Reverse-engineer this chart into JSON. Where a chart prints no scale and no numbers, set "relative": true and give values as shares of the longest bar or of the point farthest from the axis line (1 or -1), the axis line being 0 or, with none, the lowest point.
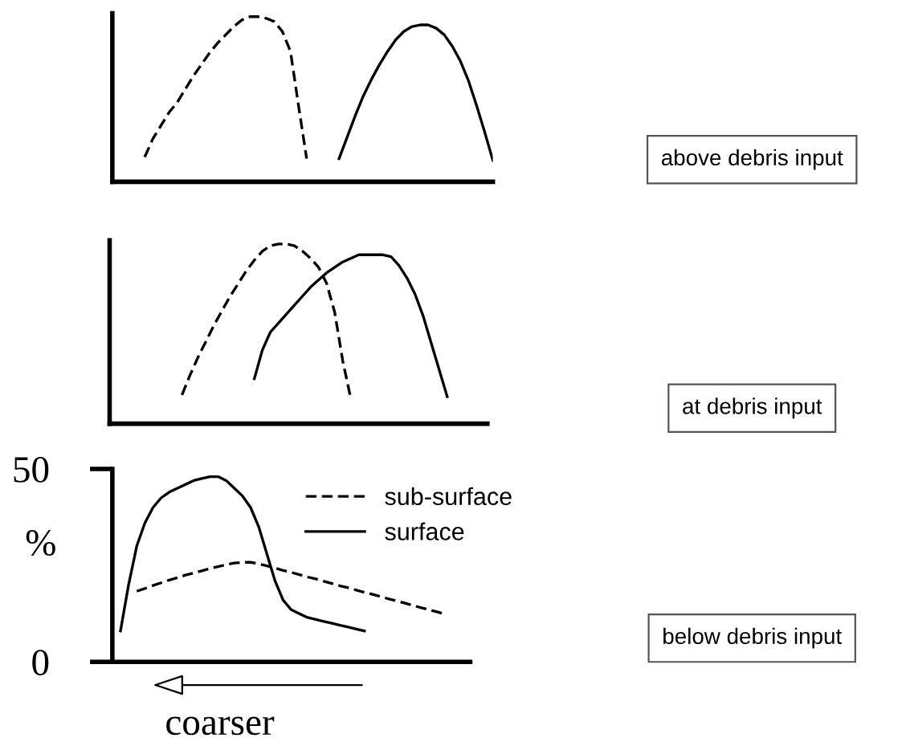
{
  "chart_data": [
    {
      "type": "line",
      "relative": true,
      "tick_labels": false,
      "categories": [
        null,
        null,
        null,
        null,
        null,
        null,
        null,
        null,
        null,
        null,
        null,
        null,
        null,
        null,
        null,
        null,
        null,
        null,
        null,
        null,
        null,
        null,
        null,
        null,
        null,
        null,
        null,
        null,
        null,
        null,
        null,
        null,
        null,
        null,
        null,
        null,
        null,
        null,
        null,
        null,
        null,
        null,
        null,
        null,
        null,
        null,
        null,
        null
      ],
      "series": [
        {
          "color": "#000000",
          "line_style": "dashed",
          "values": [
            null,
            null,
            null,
            null,
            0.15,
            0.26,
            0.34,
            0.42,
            0.48,
            0.56,
            0.64,
            0.71,
            0.78,
            0.84,
            0.89,
            0.94,
            0.98,
            1.0,
            1.0,
            0.99,
            0.97,
            0.91,
            0.79,
            0.46,
            0.14,
            null,
            null,
            null,
            null,
            null,
            null,
            null,
            null,
            null,
            null,
            null,
            null,
            null,
            null,
            null,
            null,
            null,
            null,
            null,
            null,
            null,
            null,
            null
          ]
        },
        {
          "color": "#000000",
          "line_style": "solid",
          "values": [
            null,
            null,
            null,
            null,
            null,
            null,
            null,
            null,
            null,
            null,
            null,
            null,
            null,
            null,
            null,
            null,
            null,
            null,
            null,
            null,
            null,
            null,
            null,
            null,
            null,
            null,
            null,
            null,
            0.14,
            0.27,
            0.4,
            0.52,
            0.62,
            0.71,
            0.79,
            0.86,
            0.91,
            0.94,
            0.95,
            0.95,
            0.93,
            0.89,
            0.82,
            0.73,
            0.61,
            0.46,
            0.3,
            0.13
          ]
        }
      ],
      "annotations": [
        "above debris input"
      ]
    },
    {
      "type": "line",
      "relative": true,
      "tick_labels": false,
      "categories": [
        null,
        null,
        null,
        null,
        null,
        null,
        null,
        null,
        null,
        null,
        null,
        null,
        null,
        null,
        null,
        null,
        null,
        null,
        null,
        null,
        null,
        null,
        null,
        null,
        null,
        null,
        null,
        null,
        null,
        null,
        null,
        null,
        null,
        null,
        null,
        null,
        null,
        null,
        null,
        null,
        null,
        null,
        null,
        null,
        null,
        null,
        null,
        null
      ],
      "series": [
        {
          "color": "#000000",
          "line_style": "dashed",
          "values": [
            null,
            null,
            null,
            null,
            null,
            null,
            null,
            null,
            null,
            0.16,
            0.27,
            0.37,
            0.46,
            0.55,
            0.63,
            0.71,
            0.78,
            0.85,
            0.91,
            0.96,
            0.99,
            1.0,
            1.0,
            0.99,
            0.96,
            0.92,
            0.87,
            0.78,
            0.62,
            0.35,
            0.14,
            null,
            null,
            null,
            null,
            null,
            null,
            null,
            null,
            null,
            null,
            null,
            null,
            null,
            null,
            null,
            null,
            null
          ]
        },
        {
          "color": "#000000",
          "line_style": "solid",
          "values": [
            null,
            null,
            null,
            null,
            null,
            null,
            null,
            null,
            null,
            null,
            null,
            null,
            null,
            null,
            null,
            null,
            null,
            null,
            0.25,
            0.41,
            0.51,
            0.56,
            0.61,
            0.66,
            0.71,
            0.76,
            0.8,
            0.84,
            0.87,
            0.9,
            0.92,
            0.94,
            0.94,
            0.94,
            0.94,
            0.93,
            0.88,
            0.81,
            0.72,
            0.6,
            0.45,
            0.3,
            0.15,
            null,
            null,
            null,
            null,
            null
          ]
        }
      ],
      "annotations": [
        "at debris input"
      ]
    },
    {
      "type": "line",
      "ylim": [
        0,
        50
      ],
      "yticks": [
        0,
        50
      ],
      "ylabel": "%",
      "tick_labels": "y",
      "legend": "top right",
      "categories": [
        null,
        null,
        null,
        null,
        null,
        null,
        null,
        null,
        null,
        null,
        null,
        null,
        null,
        null,
        null,
        null,
        null,
        null,
        null,
        null,
        null,
        null,
        null,
        null,
        null,
        null,
        null,
        null,
        null,
        null,
        null,
        null,
        null,
        null,
        null,
        null,
        null,
        null,
        null,
        null,
        null,
        null,
        null,
        null,
        null
      ],
      "series": [
        {
          "name": "sub-surface",
          "color": "#000000",
          "line_style": "dashed",
          "values": [
            null,
            null,
            null,
            18.3,
            19,
            19.8,
            20.5,
            21.2,
            21.8,
            22.5,
            23,
            23.6,
            24.2,
            24.7,
            25.2,
            25.6,
            25.8,
            25.8,
            25.4,
            24.9,
            24.3,
            23.7,
            23.2,
            22.6,
            22,
            21.5,
            20.9,
            20.3,
            19.7,
            19.2,
            18.6,
            18,
            17.5,
            16.9,
            16.3,
            15.8,
            15.2,
            14.6,
            14,
            13.5,
            12.9,
            12.3,
            null,
            null,
            null
          ]
        },
        {
          "name": "surface",
          "color": "#000000",
          "line_style": "solid",
          "values": [
            null,
            8,
            20,
            30,
            36,
            40,
            42.5,
            44,
            45,
            46,
            47,
            47.5,
            48,
            48,
            47,
            45,
            43,
            40,
            35,
            28,
            21,
            16,
            13.5,
            12.5,
            11.5,
            11,
            10.5,
            10,
            9.5,
            9,
            8.5,
            8,
            null,
            null,
            null,
            null,
            null,
            null,
            null,
            null,
            null,
            null,
            null,
            null,
            null
          ]
        }
      ],
      "annotations": [
        "below debris input",
        "coarser"
      ]
    }
  ]
}
